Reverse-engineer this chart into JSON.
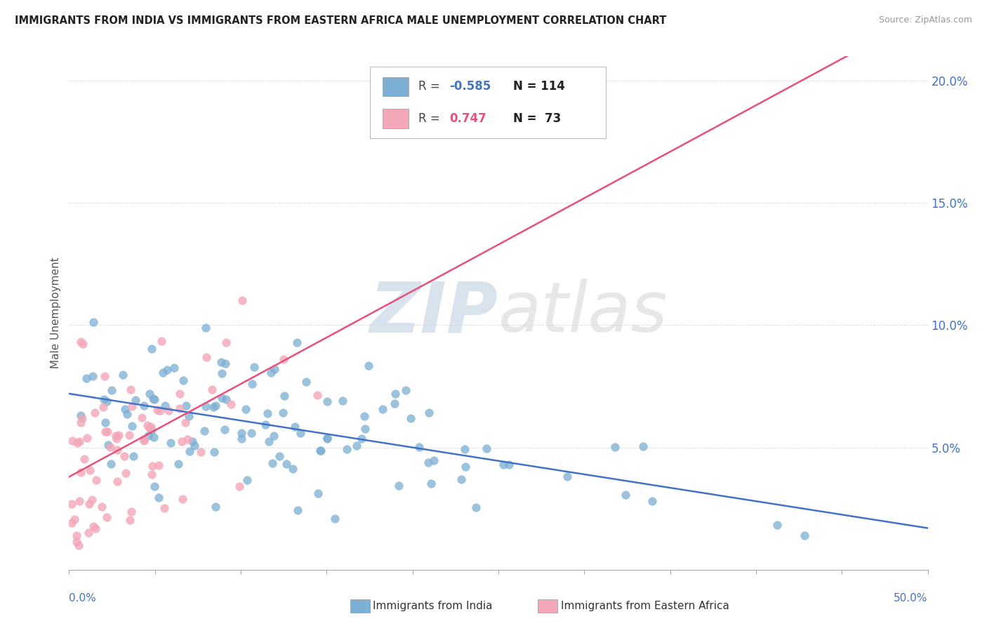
{
  "title": "IMMIGRANTS FROM INDIA VS IMMIGRANTS FROM EASTERN AFRICA MALE UNEMPLOYMENT CORRELATION CHART",
  "source": "Source: ZipAtlas.com",
  "ylabel": "Male Unemployment",
  "xlim": [
    0.0,
    0.5
  ],
  "ylim": [
    0.0,
    0.21
  ],
  "yticks": [
    0.05,
    0.1,
    0.15,
    0.2
  ],
  "ytick_labels": [
    "5.0%",
    "10.0%",
    "15.0%",
    "20.0%"
  ],
  "series_blue_label": "Immigrants from India",
  "series_pink_label": "Immigrants from Eastern Africa",
  "blue_color": "#7BAFD4",
  "pink_color": "#F4A7B9",
  "blue_line_color": "#4472C4",
  "pink_line_color": "#E8507A",
  "blue_R": -0.585,
  "blue_N": 114,
  "pink_R": 0.747,
  "pink_N": 73,
  "blue_slope": -0.11,
  "blue_intercept": 0.072,
  "pink_slope": 0.38,
  "pink_intercept": 0.038
}
